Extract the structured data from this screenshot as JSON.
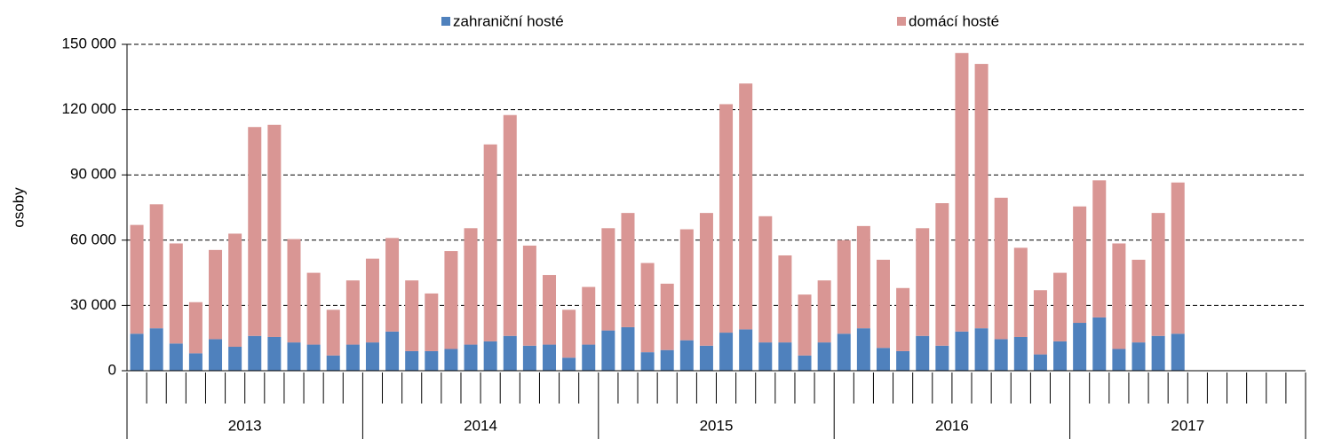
{
  "chart_data": {
    "type": "stacked_bar",
    "y_label": "osoby",
    "categories": [
      null,
      null,
      null,
      null,
      null,
      null,
      null,
      null,
      null,
      null,
      null,
      null,
      null,
      null,
      null,
      null,
      null,
      null,
      null,
      null,
      null,
      null,
      null,
      null,
      null,
      null,
      null,
      null,
      null,
      null,
      null,
      null,
      null,
      null,
      null,
      null,
      null,
      null,
      null,
      null,
      null,
      null,
      null,
      null,
      null,
      null,
      null,
      null,
      null,
      null,
      null,
      null,
      null,
      null,
      null,
      null,
      null,
      null,
      null,
      null
    ],
    "year_groups": [
      "2013",
      "2014",
      "2015",
      "2016",
      "2017"
    ],
    "series": [
      {
        "name": "zahraniční hosté",
        "color": "#4f81bd",
        "values": [
          17000,
          19500,
          12500,
          8000,
          14500,
          11000,
          16000,
          15500,
          13000,
          12000,
          7000,
          12000,
          13000,
          18000,
          9000,
          9000,
          10000,
          12000,
          13500,
          16000,
          11500,
          12000,
          6000,
          12000,
          18500,
          20000,
          8500,
          9500,
          14000,
          11500,
          17500,
          19000,
          13000,
          13000,
          7000,
          13000,
          17000,
          19500,
          10500,
          9000,
          16000,
          11500,
          18000,
          19500,
          14500,
          15500,
          7500,
          13500,
          22000,
          24500,
          10000,
          13000,
          16000,
          17000,
          null,
          null,
          null,
          null,
          null,
          null
        ]
      },
      {
        "name": "domácí hosté",
        "color": "#d99694",
        "values": [
          50000,
          57000,
          46000,
          23500,
          41000,
          52000,
          96000,
          97500,
          47500,
          33000,
          21000,
          29500,
          38500,
          43000,
          32500,
          26500,
          45000,
          53500,
          90500,
          101500,
          46000,
          32000,
          22000,
          26500,
          47000,
          52500,
          41000,
          30500,
          51000,
          61000,
          105000,
          113000,
          58000,
          40000,
          28000,
          28500,
          43000,
          47000,
          40500,
          29000,
          49500,
          65500,
          128000,
          121500,
          65000,
          41000,
          29500,
          31500,
          53500,
          63000,
          48500,
          38000,
          56500,
          69500,
          null,
          null,
          null,
          null,
          null,
          null
        ]
      }
    ],
    "ylim": [
      0,
      150000
    ],
    "yticks": [
      0,
      {
        "value": 30000,
        "label": "30 000"
      },
      {
        "value": 60000,
        "label": "60 000"
      },
      {
        "value": 90000,
        "label": "90 000"
      },
      {
        "value": 120000,
        "label": "120 000"
      },
      {
        "value": 150000,
        "label": "150 000"
      }
    ],
    "grid": true
  }
}
